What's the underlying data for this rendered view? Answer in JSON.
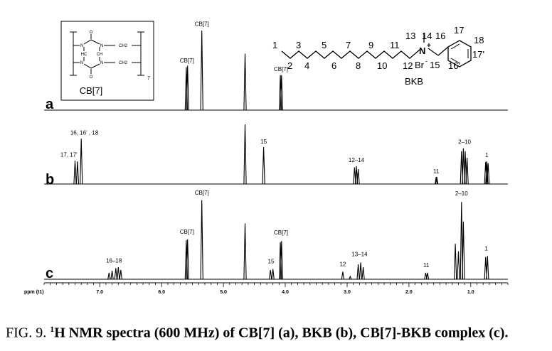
{
  "caption": {
    "prefix": "FIG. 9. ",
    "sup": "1",
    "bold": "H NMR spectra (600 MHz) of CB[7] (a), BKB (b), CB[7]-BKB complex (c)."
  },
  "chart_data": {
    "type": "line",
    "title": "",
    "xlabel": "ppm (t1)",
    "ylabel": "",
    "xlim": [
      7.9,
      0.4
    ],
    "x_reversed": true,
    "ticks": [
      {
        "v": 7.0,
        "label": "7.0"
      },
      {
        "v": 6.0,
        "label": "6.0"
      },
      {
        "v": 5.0,
        "label": "5.0"
      },
      {
        "v": 4.0,
        "label": "4.0"
      },
      {
        "v": 3.0,
        "label": "3.0"
      },
      {
        "v": 2.0,
        "label": "2.0"
      },
      {
        "v": 1.0,
        "label": "1.0"
      }
    ],
    "series": [
      {
        "name": "a",
        "peaks": [
          {
            "x": 5.6,
            "h": 0.54
          },
          {
            "x": 5.58,
            "h": 0.56
          },
          {
            "x": 5.35,
            "h": 1.0
          },
          {
            "x": 4.65,
            "h": 0.71
          },
          {
            "x": 4.08,
            "h": 0.44
          },
          {
            "x": 4.06,
            "h": 0.44
          }
        ],
        "labels": [
          {
            "text": "CB[7]",
            "x": 5.59,
            "h": 0.6
          },
          {
            "text": "CB[7]",
            "x": 5.35,
            "h": 1.06
          },
          {
            "text": "CB[7]",
            "x": 4.07,
            "h": 0.49
          }
        ]
      },
      {
        "name": "b",
        "peaks": [
          {
            "x": 7.4,
            "h": 0.39
          },
          {
            "x": 7.36,
            "h": 0.38
          },
          {
            "x": 7.3,
            "h": 0.76
          },
          {
            "x": 4.65,
            "h": 1.0
          },
          {
            "x": 4.35,
            "h": 0.62
          },
          {
            "x": 2.88,
            "h": 0.28
          },
          {
            "x": 2.85,
            "h": 0.3
          },
          {
            "x": 2.82,
            "h": 0.25
          },
          {
            "x": 1.56,
            "h": 0.12
          },
          {
            "x": 1.55,
            "h": 0.12
          },
          {
            "x": 1.15,
            "h": 0.55
          },
          {
            "x": 1.12,
            "h": 0.6
          },
          {
            "x": 1.09,
            "h": 0.55
          },
          {
            "x": 1.06,
            "h": 0.44
          },
          {
            "x": 0.76,
            "h": 0.37
          },
          {
            "x": 0.74,
            "h": 0.38
          },
          {
            "x": 0.72,
            "h": 0.35
          }
        ],
        "labels": [
          {
            "text": "16, 16'   , 18",
            "x": 7.25,
            "h": 0.83
          },
          {
            "text": "17, 17'",
            "x": 7.5,
            "h": 0.46
          },
          {
            "text": "15",
            "x": 4.35,
            "h": 0.68
          },
          {
            "text": "12–14",
            "x": 2.85,
            "h": 0.37
          },
          {
            "text": "11",
            "x": 1.56,
            "h": 0.18
          },
          {
            "text": "2–10",
            "x": 1.1,
            "h": 0.67
          },
          {
            "text": "1",
            "x": 0.74,
            "h": 0.45
          }
        ]
      },
      {
        "name": "c",
        "peaks": [
          {
            "x": 6.85,
            "h": 0.07
          },
          {
            "x": 6.8,
            "h": 0.09
          },
          {
            "x": 6.74,
            "h": 0.12
          },
          {
            "x": 6.7,
            "h": 0.13
          },
          {
            "x": 6.66,
            "h": 0.1
          },
          {
            "x": 5.6,
            "h": 0.42
          },
          {
            "x": 5.58,
            "h": 0.43
          },
          {
            "x": 5.35,
            "h": 0.85
          },
          {
            "x": 4.65,
            "h": 0.6
          },
          {
            "x": 4.24,
            "h": 0.1
          },
          {
            "x": 4.2,
            "h": 0.11
          },
          {
            "x": 4.08,
            "h": 0.4
          },
          {
            "x": 4.06,
            "h": 0.41
          },
          {
            "x": 3.07,
            "h": 0.08
          },
          {
            "x": 2.95,
            "h": 0.03
          },
          {
            "x": 2.82,
            "h": 0.16
          },
          {
            "x": 2.78,
            "h": 0.18
          },
          {
            "x": 2.74,
            "h": 0.13
          },
          {
            "x": 1.73,
            "h": 0.07
          },
          {
            "x": 1.7,
            "h": 0.07
          },
          {
            "x": 1.25,
            "h": 0.38
          },
          {
            "x": 1.2,
            "h": 0.3
          },
          {
            "x": 1.15,
            "h": 0.83
          },
          {
            "x": 1.12,
            "h": 0.62
          },
          {
            "x": 0.76,
            "h": 0.24
          },
          {
            "x": 0.73,
            "h": 0.25
          }
        ],
        "labels": [
          {
            "text": "16–18",
            "x": 6.77,
            "h": 0.18
          },
          {
            "text": "CB[7]",
            "x": 5.59,
            "h": 0.49
          },
          {
            "text": "CB[7]",
            "x": 5.35,
            "h": 0.91
          },
          {
            "text": "15",
            "x": 4.23,
            "h": 0.17
          },
          {
            "text": "CB[7]",
            "x": 4.07,
            "h": 0.48
          },
          {
            "text": "12",
            "x": 3.07,
            "h": 0.14
          },
          {
            "text": "13–14",
            "x": 2.8,
            "h": 0.25
          },
          {
            "text": "11",
            "x": 1.72,
            "h": 0.13
          },
          {
            "text": "2–10",
            "x": 1.15,
            "h": 0.9
          },
          {
            "text": "1",
            "x": 0.75,
            "h": 0.31
          }
        ]
      }
    ],
    "molecule": {
      "name": "BKB",
      "chain_numbers": [
        "1",
        "2",
        "3",
        "4",
        "5",
        "6",
        "7",
        "8",
        "9",
        "10",
        "11",
        "12"
      ],
      "ammonium": "N",
      "charge": "+",
      "counterion": "Br",
      "counterion_charge": "-",
      "substituent_numbers": [
        "13",
        "14",
        "15",
        "16",
        "16'",
        "17",
        "17'",
        "18"
      ]
    },
    "cb7_structure": {
      "name": "CB[7]",
      "subscript": "7",
      "atoms": [
        "O",
        "N",
        "N",
        "HC",
        "CH",
        "N",
        "N",
        "O",
        "CH2",
        "CH2"
      ]
    }
  }
}
